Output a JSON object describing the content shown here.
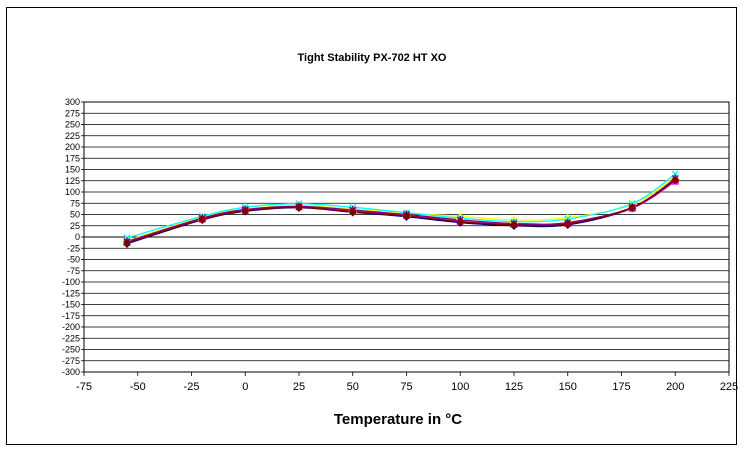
{
  "chart_data": {
    "type": "line",
    "title": "Tight Stability PX-702 HT XO",
    "xlabel": "Temperature in °C",
    "ylabel": "",
    "xlim": [
      -75,
      225
    ],
    "ylim": [
      -300,
      300
    ],
    "x_ticks": [
      -75,
      -50,
      -25,
      0,
      25,
      50,
      75,
      100,
      125,
      150,
      175,
      200,
      225
    ],
    "y_ticks": [
      300,
      275,
      250,
      225,
      200,
      175,
      150,
      125,
      100,
      75,
      50,
      25,
      0,
      -25,
      -50,
      -75,
      -100,
      -125,
      -150,
      -175,
      -200,
      -225,
      -250,
      -275,
      -300
    ],
    "grid": "horizontal",
    "legend": "none",
    "x": [
      -55,
      -20,
      0,
      25,
      50,
      75,
      100,
      125,
      150,
      180,
      200
    ],
    "series": [
      {
        "color": "#000080",
        "marker": "diamond",
        "values": [
          -15,
          38,
          57,
          65,
          55,
          45,
          32,
          25,
          27,
          64,
          128
        ]
      },
      {
        "color": "#ff00ff",
        "marker": "square",
        "values": [
          -12,
          40,
          59,
          67,
          58,
          48,
          35,
          28,
          30,
          64,
          124
        ]
      },
      {
        "color": "#ffff00",
        "marker": "triangle",
        "values": [
          -8,
          44,
          62,
          70,
          62,
          53,
          46,
          38,
          43,
          72,
          135
        ]
      },
      {
        "color": "#00ffff",
        "marker": "x",
        "values": [
          -2,
          46,
          66,
          74,
          66,
          54,
          42,
          34,
          40,
          74,
          140
        ]
      },
      {
        "color": "#800080",
        "marker": "star",
        "values": [
          -10,
          42,
          61,
          68,
          60,
          50,
          38,
          30,
          32,
          66,
          130
        ]
      },
      {
        "color": "#800000",
        "marker": "circle",
        "values": [
          -13,
          39,
          58,
          66,
          56,
          47,
          34,
          27,
          29,
          65,
          126
        ]
      }
    ]
  }
}
